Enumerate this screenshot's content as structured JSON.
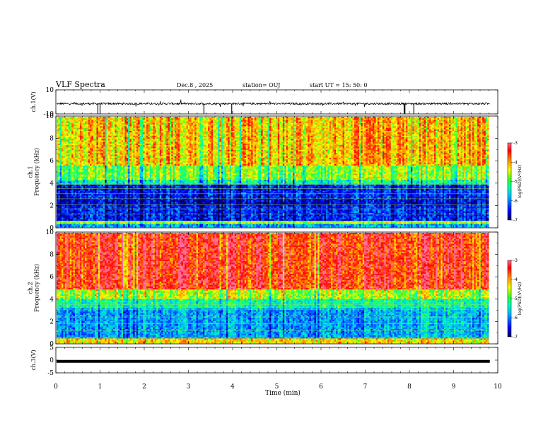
{
  "header": {
    "title": "VLF Spectra",
    "date": "Dec.8 , 2025",
    "station": "station= OUJ",
    "start": "start UT = 15: 50: 0"
  },
  "colors": {
    "ink": "#000000",
    "colormap": [
      "#000050",
      "#0000ff",
      "#00b4ff",
      "#00ffb4",
      "#32ff32",
      "#ffff00",
      "#ff8c00",
      "#ff0000",
      "#ff6e96"
    ]
  },
  "chart_data": [
    {
      "type": "line",
      "name": "ch1-waveform",
      "ylabel": "ch.1(V)",
      "ylim": [
        -10,
        10
      ],
      "yticks": [
        "10",
        "-10"
      ],
      "description_values": {
        "baseline": -1.5,
        "spike_min": -10
      },
      "xlim": [
        0,
        10
      ]
    },
    {
      "type": "heatmap",
      "name": "ch1-spectrogram",
      "ylabel_top": "ch.1",
      "ylabel": "Frequency (kHz)",
      "ylim": [
        0,
        10
      ],
      "yticks": [
        "0",
        "2",
        "4",
        "6",
        "8",
        "10"
      ],
      "xlim": [
        0,
        9.8
      ],
      "colorbar": {
        "label": "log(PSD)(V²/Hz)",
        "ticks": [
          "-3",
          "-4",
          "-5",
          "-6",
          "-7"
        ],
        "range": [
          -7,
          -3
        ]
      }
    },
    {
      "type": "heatmap",
      "name": "ch2-spectrogram",
      "ylabel_top": "ch.2",
      "ylabel": "Frequency (kHz)",
      "ylim": [
        0,
        10
      ],
      "yticks": [
        "0",
        "2",
        "4",
        "6",
        "8",
        "10"
      ],
      "xlim": [
        0,
        9.8
      ],
      "colorbar": {
        "label": "log(PSD)(V²/Hz)",
        "ticks": [
          "-3",
          "-4",
          "-5",
          "-6",
          "-7"
        ],
        "range": [
          -7,
          -3
        ]
      }
    },
    {
      "type": "line",
      "name": "ch3-waveform",
      "ylabel": "ch.3(V)",
      "ylim": [
        -5,
        5
      ],
      "yticks": [
        "5",
        "0",
        "-5"
      ],
      "description_values": {
        "baseline": -0.5
      },
      "xlim": [
        0,
        10
      ]
    }
  ],
  "xaxis": {
    "label": "Time (min)",
    "ticks": [
      "0",
      "1",
      "2",
      "3",
      "4",
      "5",
      "6",
      "7",
      "8",
      "9",
      "10"
    ],
    "range": [
      0,
      10
    ]
  }
}
